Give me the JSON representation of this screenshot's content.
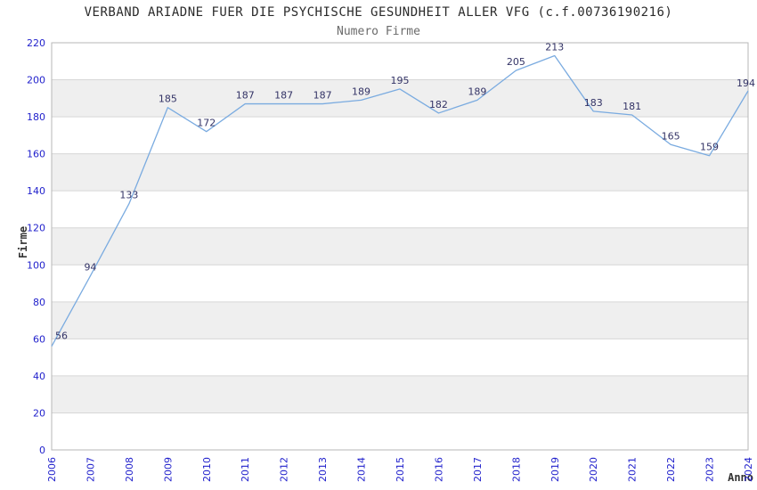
{
  "header": {
    "title": "VERBAND ARIADNE FUER DIE PSYCHISCHE GESUNDHEIT ALLER VFG (c.f.00736190216)",
    "subtitle": "Numero Firme"
  },
  "chart_data": {
    "type": "line",
    "title": "VERBAND ARIADNE FUER DIE PSYCHISCHE GESUNDHEIT ALLER VFG (c.f.00736190216)",
    "subtitle": "Numero Firme",
    "categories": [
      "2006",
      "2007",
      "2008",
      "2009",
      "2010",
      "2011",
      "2012",
      "2013",
      "2014",
      "2015",
      "2016",
      "2017",
      "2018",
      "2019",
      "2020",
      "2021",
      "2022",
      "2023",
      "2024"
    ],
    "values": [
      56,
      94,
      133,
      185,
      172,
      187,
      187,
      187,
      189,
      195,
      182,
      189,
      205,
      213,
      183,
      181,
      165,
      159,
      194
    ],
    "xlabel": "Anno",
    "ylabel": "Firme",
    "ylim": [
      0,
      220
    ],
    "ytick_step": 20,
    "yticks": [
      0,
      20,
      40,
      60,
      80,
      100,
      120,
      140,
      160,
      180,
      200,
      220
    ],
    "grid": true,
    "legend_position": "none",
    "band_fill_ranges": [
      [
        20,
        40
      ],
      [
        60,
        80
      ],
      [
        100,
        120
      ],
      [
        140,
        160
      ],
      [
        180,
        200
      ]
    ],
    "colors": {
      "line": "#7aabe0",
      "tick_label": "#2222cc",
      "data_label": "#333366",
      "band": "#efefef",
      "gridline": "#d6d6d6",
      "plot_border": "#b7b7b7",
      "title_text": "#2b2b2b",
      "subtitle_text": "#6b6b6b",
      "axis_title_text": "#333333",
      "background": "#ffffff"
    }
  }
}
